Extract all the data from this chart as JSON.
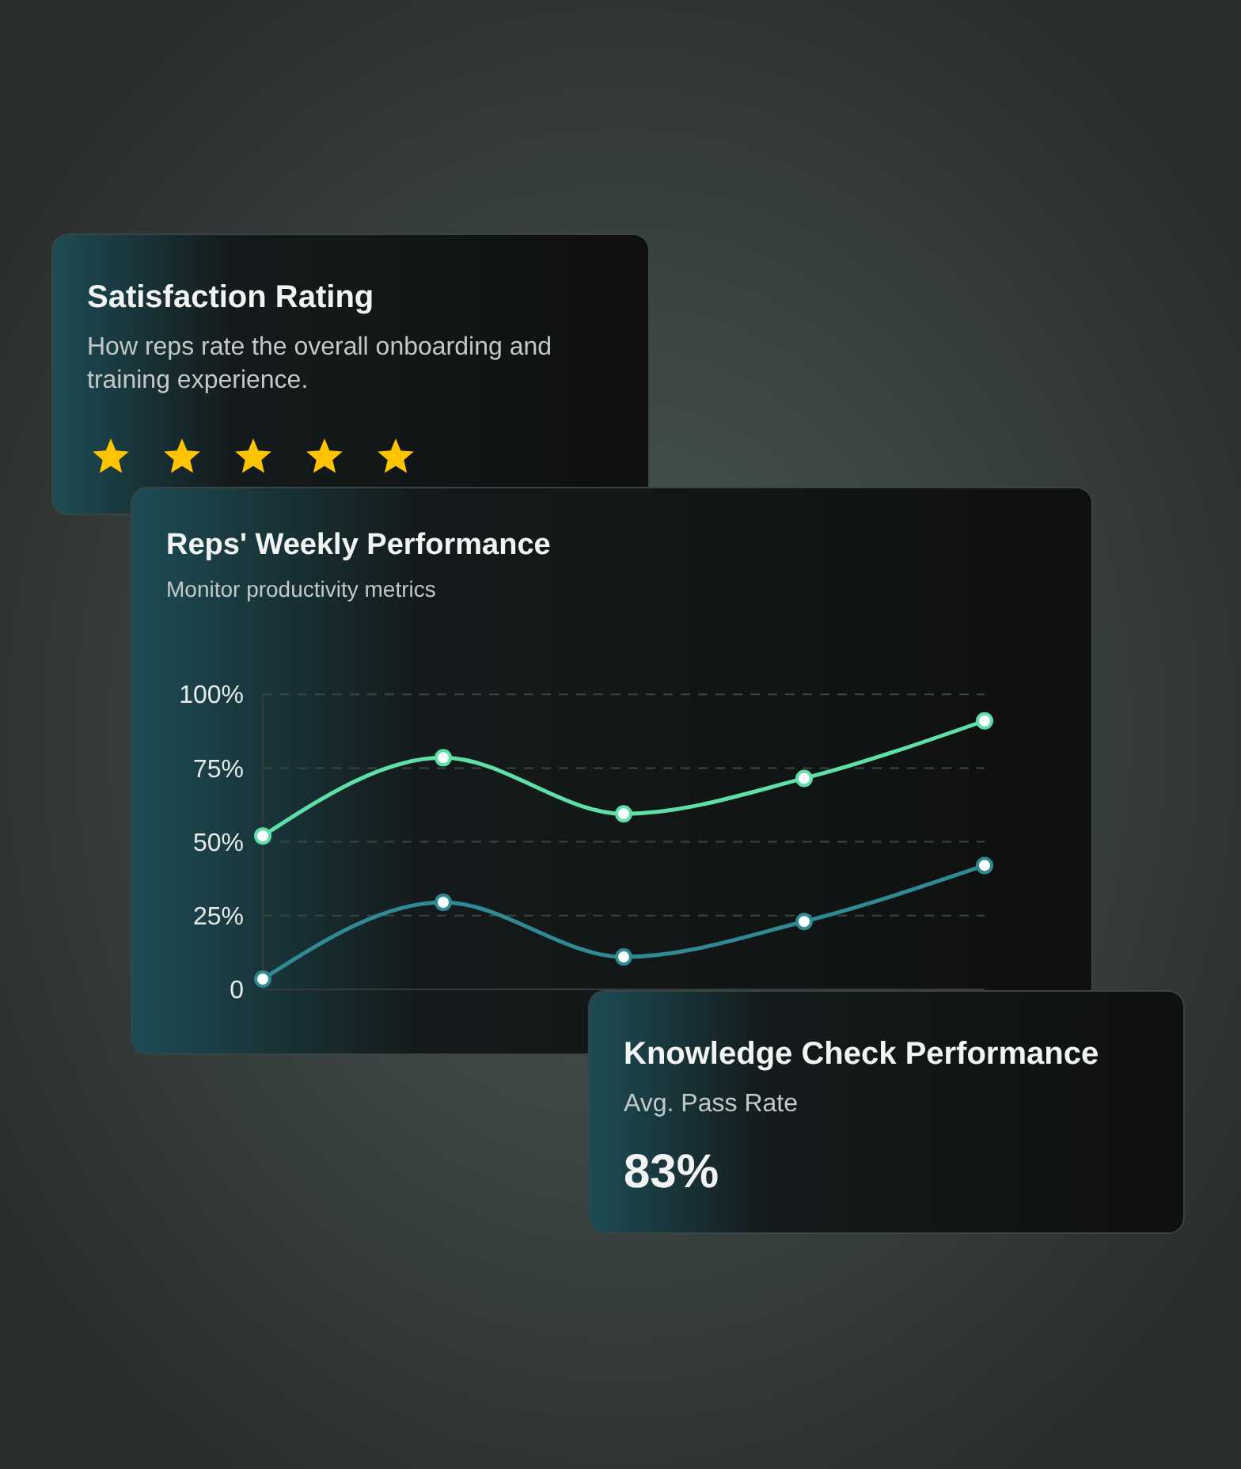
{
  "chart_data": [
    {
      "type": "other",
      "title": "Satisfaction Rating",
      "subtitle": "How reps rate the overall onboarding and training experience."
    },
    {
      "type": "line",
      "title": "Reps' Weekly Performance",
      "subtitle": "Monitor productivity metrics",
      "categories": [
        null,
        null,
        null,
        null,
        null
      ],
      "ylim": [
        0,
        100
      ],
      "yticks": [
        0,
        {
          "value": 25,
          "label": "25%"
        },
        {
          "value": 50,
          "label": "50%"
        },
        {
          "value": 75,
          "label": "75%"
        },
        {
          "value": 100,
          "label": "100%"
        }
      ],
      "grid": "y",
      "marker": "circle",
      "series": [
        {
          "color": "#5ee0a8",
          "values": [
            52,
            78.5,
            59.5,
            71.5,
            91
          ]
        },
        {
          "color": "#2f8a94",
          "values": [
            3.5,
            29.5,
            11,
            23,
            42
          ]
        }
      ]
    },
    {
      "type": "other",
      "title": "Knowledge Check Performance",
      "subtitle": "Avg. Pass Rate",
      "annotations": [
        "83%"
      ]
    }
  ]
}
